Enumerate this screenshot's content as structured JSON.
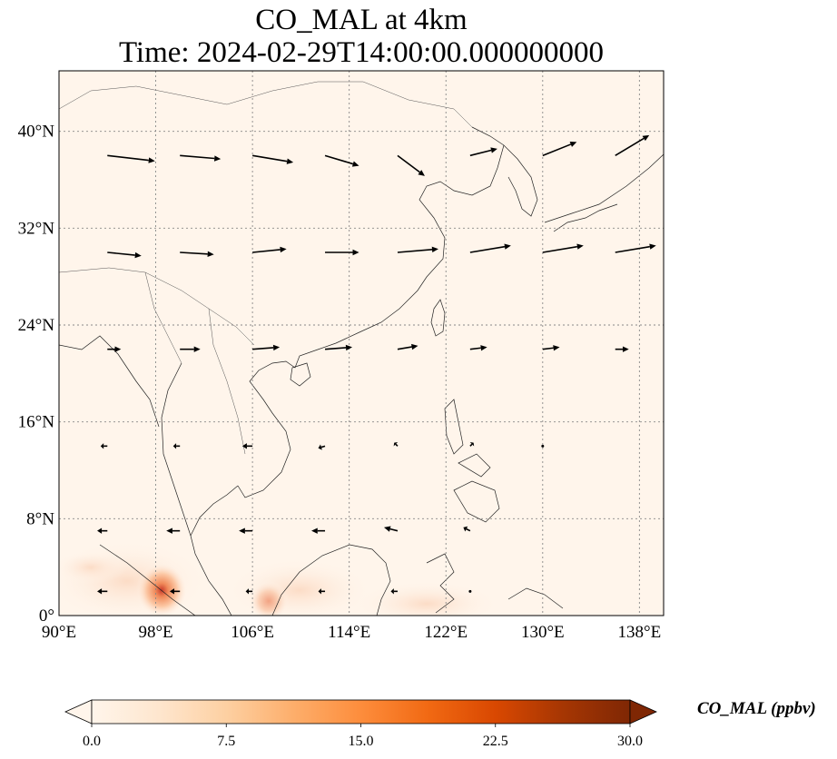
{
  "title_line1": "CO_MAL at 4km",
  "title_line2": "Time: 2024-02-29T14:00:00.000000000",
  "map": {
    "lon_range": [
      90,
      140
    ],
    "lat_range": [
      0,
      45
    ],
    "lon_ticks": [
      90,
      98,
      106,
      114,
      122,
      130,
      138
    ],
    "lon_tick_labels": [
      "90°E",
      "98°E",
      "106°E",
      "114°E",
      "122°E",
      "130°E",
      "138°E"
    ],
    "lat_ticks": [
      0,
      8,
      16,
      24,
      32,
      40
    ],
    "lat_tick_labels": [
      "0°",
      "8°N",
      "16°N",
      "24°N",
      "32°N",
      "40°N"
    ],
    "gridlines": true,
    "background_color": "#fff5eb"
  },
  "colorbar": {
    "label": "CO_MAL (ppbv)",
    "min": 0,
    "max": 30,
    "ticks": [
      0,
      7.5,
      15,
      22.5,
      30
    ],
    "tick_labels": [
      "0.0",
      "7.5",
      "15.0",
      "22.5",
      "30.0"
    ],
    "colormap": "OrRd",
    "colors": [
      "#fff5eb",
      "#fee6ce",
      "#fdd0a2",
      "#fdae6b",
      "#fd8d3c",
      "#f16913",
      "#d94801",
      "#a63603",
      "#7f2704"
    ],
    "extend": "both"
  },
  "chart_data": {
    "type": "heatmap",
    "title": "CO_MAL at 4km",
    "subtitle": "Time: 2024-02-29T14:00:00.000000000",
    "xlim": [
      90,
      140
    ],
    "ylim": [
      0,
      45
    ],
    "hotspots": [
      {
        "lon": 98.3,
        "lat": 2.2,
        "value": 16
      },
      {
        "lon": 107.2,
        "lat": 1.2,
        "value": 10
      },
      {
        "lon": 94.0,
        "lat": 3.5,
        "value": 3
      },
      {
        "lon": 112.0,
        "lat": 1.5,
        "value": 3
      }
    ],
    "wind_vectors": [
      {
        "lon": 94,
        "lat": 38,
        "u": 7,
        "v": -0.8
      },
      {
        "lon": 100,
        "lat": 38,
        "u": 6,
        "v": -0.5
      },
      {
        "lon": 106,
        "lat": 38,
        "u": 6,
        "v": -1
      },
      {
        "lon": 112,
        "lat": 38,
        "u": 5,
        "v": -1.5
      },
      {
        "lon": 118,
        "lat": 38,
        "u": 4,
        "v": -3
      },
      {
        "lon": 124,
        "lat": 38,
        "u": 4,
        "v": 1
      },
      {
        "lon": 130,
        "lat": 38,
        "u": 5,
        "v": 2
      },
      {
        "lon": 136,
        "lat": 38,
        "u": 5,
        "v": 3
      },
      {
        "lon": 94,
        "lat": 30,
        "u": 5,
        "v": -0.5
      },
      {
        "lon": 100,
        "lat": 30,
        "u": 5,
        "v": -0.3
      },
      {
        "lon": 106,
        "lat": 30,
        "u": 5,
        "v": 0.5
      },
      {
        "lon": 112,
        "lat": 30,
        "u": 5,
        "v": 0
      },
      {
        "lon": 118,
        "lat": 30,
        "u": 6,
        "v": 0.5
      },
      {
        "lon": 124,
        "lat": 30,
        "u": 6,
        "v": 1
      },
      {
        "lon": 130,
        "lat": 30,
        "u": 6,
        "v": 1
      },
      {
        "lon": 136,
        "lat": 30,
        "u": 6,
        "v": 1
      },
      {
        "lon": 94,
        "lat": 22,
        "u": 2,
        "v": 0
      },
      {
        "lon": 100,
        "lat": 22,
        "u": 3,
        "v": 0
      },
      {
        "lon": 106,
        "lat": 22,
        "u": 4,
        "v": 0.3
      },
      {
        "lon": 112,
        "lat": 22,
        "u": 4,
        "v": 0.3
      },
      {
        "lon": 118,
        "lat": 22,
        "u": 3,
        "v": 0.5
      },
      {
        "lon": 124,
        "lat": 22,
        "u": 2.5,
        "v": 0.3
      },
      {
        "lon": 130,
        "lat": 22,
        "u": 2.5,
        "v": 0.3
      },
      {
        "lon": 136,
        "lat": 22,
        "u": 2,
        "v": 0
      },
      {
        "lon": 94,
        "lat": 14,
        "u": -1,
        "v": 0
      },
      {
        "lon": 100,
        "lat": 14,
        "u": -1,
        "v": 0
      },
      {
        "lon": 106,
        "lat": 14,
        "u": -1.5,
        "v": 0
      },
      {
        "lon": 112,
        "lat": 14,
        "u": -1,
        "v": -0.3
      },
      {
        "lon": 118,
        "lat": 14,
        "u": -0.5,
        "v": 0.5
      },
      {
        "lon": 124,
        "lat": 14,
        "u": 0.5,
        "v": 0.5
      },
      {
        "lon": 130,
        "lat": 14,
        "u": 0,
        "v": 0
      },
      {
        "lon": 94,
        "lat": 7,
        "u": -1.5,
        "v": 0
      },
      {
        "lon": 100,
        "lat": 7,
        "u": -2,
        "v": 0
      },
      {
        "lon": 106,
        "lat": 7,
        "u": -2,
        "v": 0
      },
      {
        "lon": 112,
        "lat": 7,
        "u": -2,
        "v": 0
      },
      {
        "lon": 118,
        "lat": 7,
        "u": -2,
        "v": 0.5
      },
      {
        "lon": 124,
        "lat": 7,
        "u": -1,
        "v": 0.5
      },
      {
        "lon": 94,
        "lat": 2,
        "u": -1.5,
        "v": 0
      },
      {
        "lon": 100,
        "lat": 2,
        "u": -1.5,
        "v": 0
      },
      {
        "lon": 106,
        "lat": 2,
        "u": -1,
        "v": 0
      },
      {
        "lon": 112,
        "lat": 2,
        "u": -1,
        "v": 0
      },
      {
        "lon": 118,
        "lat": 2,
        "u": -1,
        "v": 0
      },
      {
        "lon": 124,
        "lat": 2,
        "u": 0,
        "v": 0
      }
    ]
  }
}
